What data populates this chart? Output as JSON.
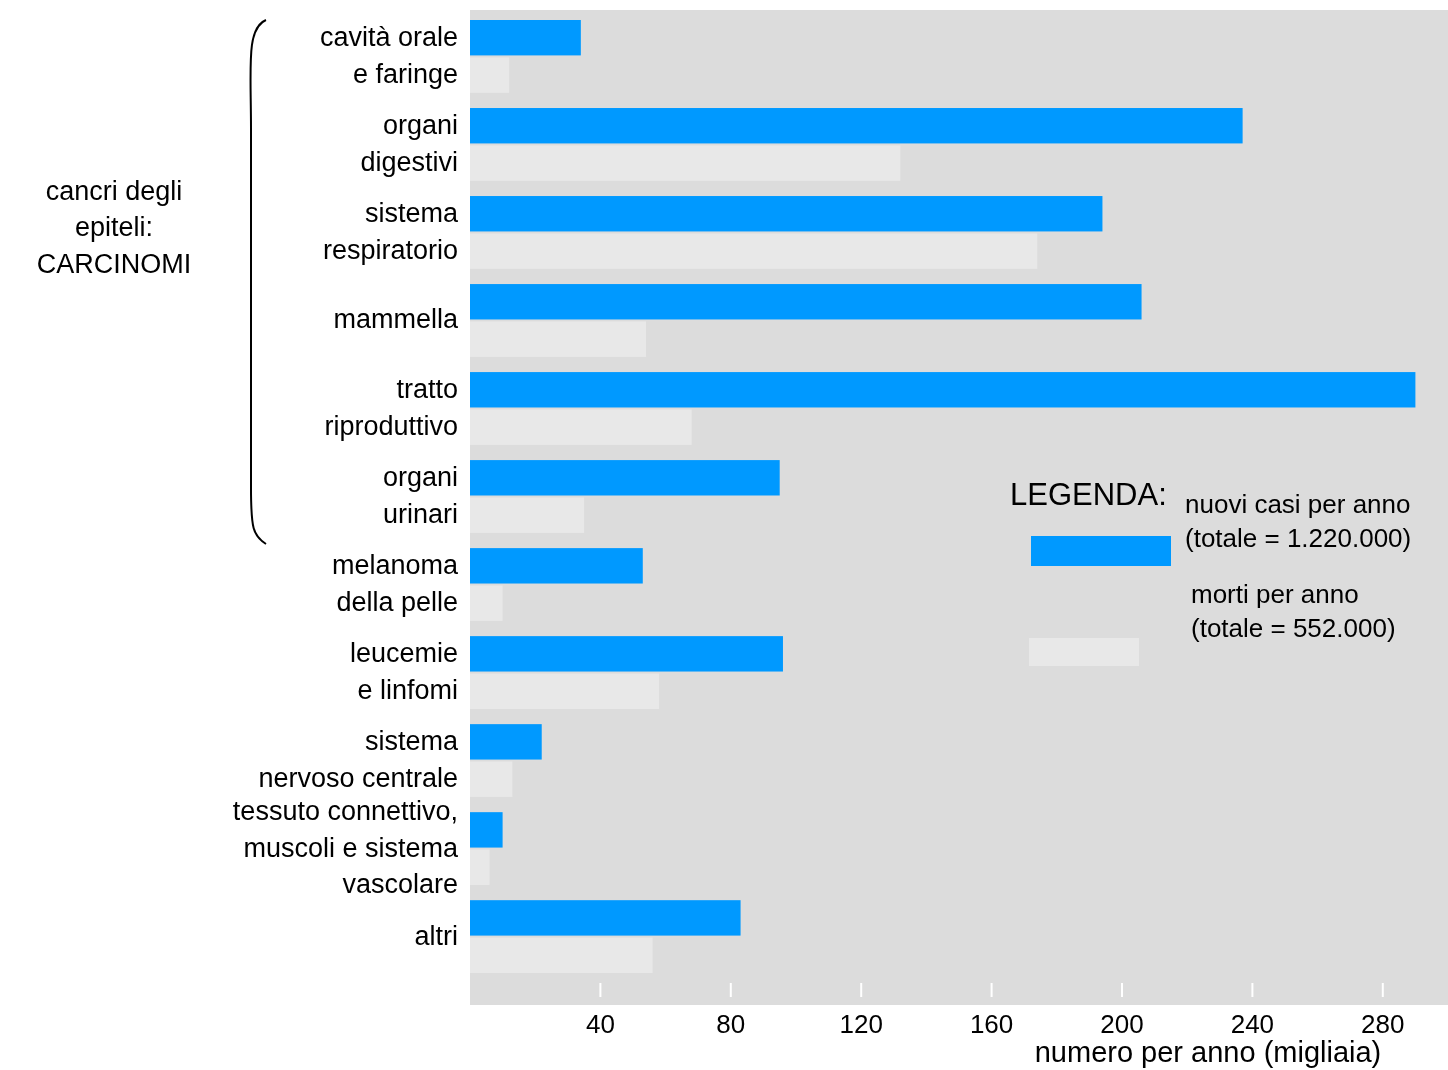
{
  "chart_data": {
    "type": "bar",
    "orientation": "horizontal",
    "xlabel": "numero per anno (migliaia)",
    "legend_title": "LEGENDA:",
    "legend": "right",
    "grid": false,
    "categories": [
      "cavità orale\ne faringe",
      "organi\ndigestivi",
      "sistema\nrespiratorio",
      "mammella",
      "tratto\nriproduttivo",
      "organi\nurinari",
      "melanoma\ndella pelle",
      "leucemie\ne linfomi",
      "sistema\nnervoso centrale",
      "tessuto connettivo,\nmuscoli e sistema\nvascolare",
      "altri"
    ],
    "series": [
      {
        "name": "nuovi casi per anno\n(totale = 1.220.000)",
        "color": "#0099ff",
        "values": [
          34,
          237,
          194,
          206,
          290,
          95,
          53,
          96,
          22,
          10,
          83
        ]
      },
      {
        "name": "morti per anno\n(totale = 552.000)",
        "color": "#e8e8e8",
        "values": [
          12,
          132,
          174,
          54,
          68,
          35,
          10,
          58,
          13,
          6,
          56
        ]
      }
    ],
    "xlim": [
      0,
      300
    ],
    "xticks": [
      40,
      80,
      120,
      160,
      200,
      240,
      280
    ],
    "annotations": [
      "cancri degli\nepiteli:\nCARCINOMI"
    ]
  }
}
